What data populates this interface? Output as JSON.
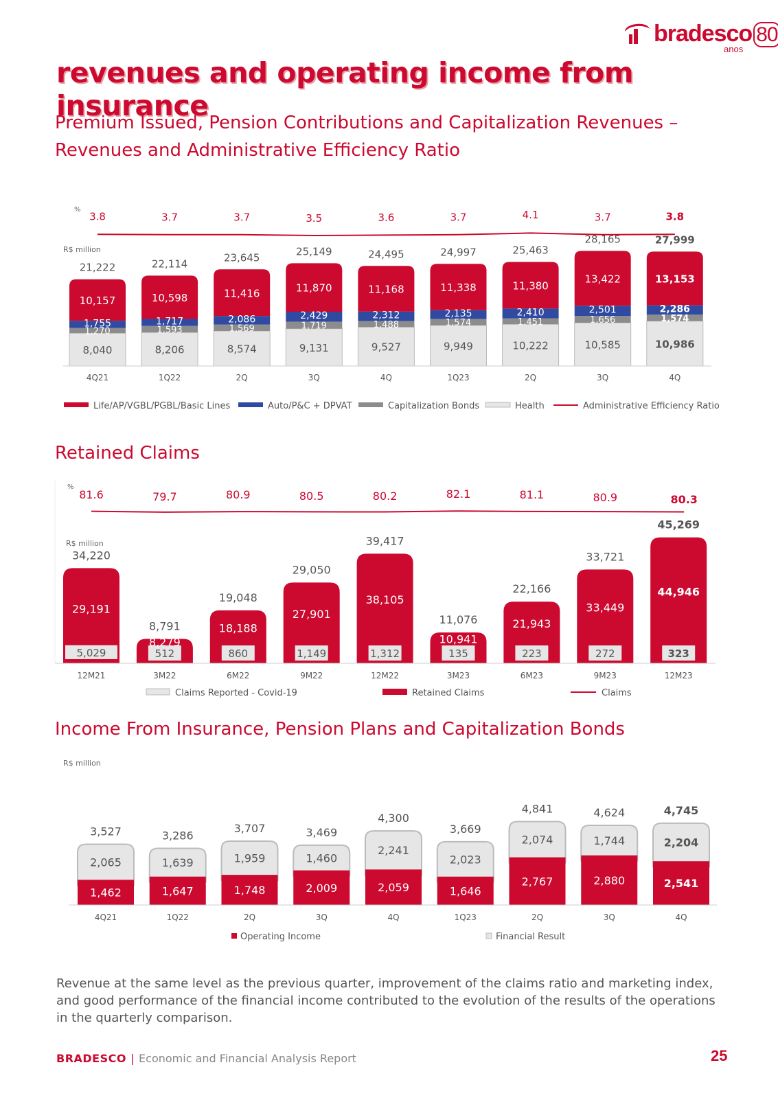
{
  "header": {
    "brand": "bradesco",
    "brand_number": "80",
    "brand_sub": "anos",
    "title": "revenues and operating income from insurance"
  },
  "colors": {
    "red": "#cc092f",
    "blue": "#2f4aa0",
    "gray": "#8c8c8c",
    "light": "#e6e6e6",
    "text": "#555555"
  },
  "sections": {
    "premium_title": "Premium Issued, Pension Contributions and Capitalization Revenues – Revenues and Administrative Efficiency Ratio",
    "claims_title": "Retained Claims",
    "income_title": "Income From Insurance, Pension Plans and Capitalization Bonds"
  },
  "chart_data": [
    {
      "type": "bar",
      "title": "Premium Issued, Pension Contributions and Capitalization Revenues – Revenues and Administrative Efficiency Ratio",
      "unit_left": "R$ million",
      "unit_ratio": "%",
      "categories": [
        "4Q21",
        "1Q22",
        "2Q",
        "3Q",
        "4Q",
        "1Q23",
        "2Q",
        "3Q",
        "4Q"
      ],
      "series": [
        {
          "name": "Health",
          "values": [
            8040,
            8206,
            8574,
            9131,
            9527,
            9949,
            10222,
            10585,
            10986
          ],
          "labels": [
            "8,040",
            "8,206",
            "8,574",
            "9,131",
            "9,527",
            "9,949",
            "10,222",
            "10,585",
            "10,986"
          ]
        },
        {
          "name": "Capitalization Bonds",
          "values": [
            1270,
            1593,
            1569,
            1719,
            1488,
            1574,
            1451,
            1656,
            1574
          ],
          "labels": [
            "1,270",
            "1,593",
            "1,569",
            "1,719",
            "1,488",
            "1,574",
            "1,451",
            "1,656",
            "1,574"
          ]
        },
        {
          "name": "Auto/P&C + DPVAT",
          "values": [
            1755,
            1717,
            2086,
            2429,
            2312,
            2135,
            2410,
            2501,
            2286
          ],
          "labels": [
            "1,755",
            "1,717",
            "2,086",
            "2,429",
            "2,312",
            "2,135",
            "2,410",
            "2,501",
            "2,286"
          ]
        },
        {
          "name": "Life/AP/VGBL/PGBL/Basic Lines",
          "values": [
            10157,
            10598,
            11416,
            11870,
            11168,
            11338,
            11380,
            13422,
            13153
          ],
          "labels": [
            "10,157",
            "10,598",
            "11,416",
            "11,870",
            "11,168",
            "11,338",
            "11,380",
            "13,422",
            "13,153"
          ]
        }
      ],
      "totals": [
        21222,
        22114,
        23645,
        25149,
        24495,
        24997,
        25463,
        28165,
        27999
      ],
      "total_labels": [
        "21,222",
        "22,114",
        "23,645",
        "25,149",
        "24,495",
        "24,997",
        "25,463",
        "28,165",
        "27,999"
      ],
      "ratio": {
        "name": "Administrative Efficiency Ratio",
        "values": [
          3.8,
          3.7,
          3.7,
          3.5,
          3.6,
          3.7,
          4.1,
          3.7,
          3.8
        ],
        "labels": [
          "3.8",
          "3.7",
          "3.7",
          "3.5",
          "3.6",
          "3.7",
          "4.1",
          "3.7",
          "3.8"
        ]
      },
      "legend": [
        "Life/AP/VGBL/PGBL/Basic Lines",
        "Auto/P&C + DPVAT",
        "Capitalization Bonds",
        "Health",
        "Administrative Efficiency Ratio"
      ]
    },
    {
      "type": "bar",
      "title": "Retained Claims",
      "unit_left": "R$ million",
      "unit_ratio": "%",
      "categories": [
        "12M21",
        "3M22",
        "6M22",
        "9M22",
        "12M22",
        "3M23",
        "6M23",
        "9M23",
        "12M23"
      ],
      "series": [
        {
          "name": "Claims Reported - Covid-19",
          "values": [
            5029,
            512,
            860,
            1149,
            1312,
            135,
            223,
            272,
            323
          ],
          "labels": [
            "5,029",
            "512",
            "860",
            "1,149",
            "1,312",
            "135",
            "223",
            "272",
            "323"
          ]
        },
        {
          "name": "Retained Claims",
          "values": [
            29191,
            8279,
            18188,
            27901,
            38105,
            10941,
            21943,
            33449,
            44946
          ],
          "labels": [
            "29,191",
            "8,279",
            "18,188",
            "27,901",
            "38,105",
            "10,941",
            "21,943",
            "33,449",
            "44,946"
          ]
        }
      ],
      "totals": [
        34220,
        8791,
        19048,
        29050,
        39417,
        11076,
        22166,
        33721,
        45269
      ],
      "total_labels": [
        "34,220",
        "8,791",
        "19,048",
        "29,050",
        "39,417",
        "11,076",
        "22,166",
        "33,721",
        "45,269"
      ],
      "ratio": {
        "name": "Claims",
        "values": [
          81.6,
          79.7,
          80.9,
          80.5,
          80.2,
          82.1,
          81.1,
          80.9,
          80.3
        ],
        "labels": [
          "81.6",
          "79.7",
          "80.9",
          "80.5",
          "80.2",
          "82.1",
          "81.1",
          "80.9",
          "80.3"
        ]
      },
      "legend": [
        "Claims Reported - Covid-19",
        "Retained Claims",
        "Claims"
      ]
    },
    {
      "type": "bar",
      "title": "Income From Insurance, Pension Plans and Capitalization Bonds",
      "unit_left": "R$ million",
      "categories": [
        "4Q21",
        "1Q22",
        "2Q",
        "3Q",
        "4Q",
        "1Q23",
        "2Q",
        "3Q",
        "4Q"
      ],
      "series": [
        {
          "name": "Operating Income",
          "values": [
            1462,
            1647,
            1748,
            2009,
            2059,
            1646,
            2767,
            2880,
            2541
          ],
          "labels": [
            "1,462",
            "1,647",
            "1,748",
            "2,009",
            "2,059",
            "1,646",
            "2,767",
            "2,880",
            "2,541"
          ]
        },
        {
          "name": "Financial Result",
          "values": [
            2065,
            1639,
            1959,
            1460,
            2241,
            2023,
            2074,
            1744,
            2204
          ],
          "labels": [
            "2,065",
            "1,639",
            "1,959",
            "1,460",
            "2,241",
            "2,023",
            "2,074",
            "1,744",
            "2,204"
          ]
        }
      ],
      "totals": [
        3527,
        3286,
        3707,
        3469,
        4300,
        3669,
        4841,
        4624,
        4745
      ],
      "total_labels": [
        "3,527",
        "3,286",
        "3,707",
        "3,469",
        "4,300",
        "3,669",
        "4,841",
        "4,624",
        "4,745"
      ],
      "legend": [
        "Operating Income",
        "Financial Result"
      ]
    }
  ],
  "description": "Revenue at the same level as the previous quarter, improvement of the claims ratio and marketing index, and good performance of the financial income contributed to the evolution of the results of the operations in the quarterly comparison.",
  "footer": {
    "brand": "BRADESCO",
    "separator": "|",
    "report": "Economic and Financial Analysis Report",
    "page": "25"
  }
}
